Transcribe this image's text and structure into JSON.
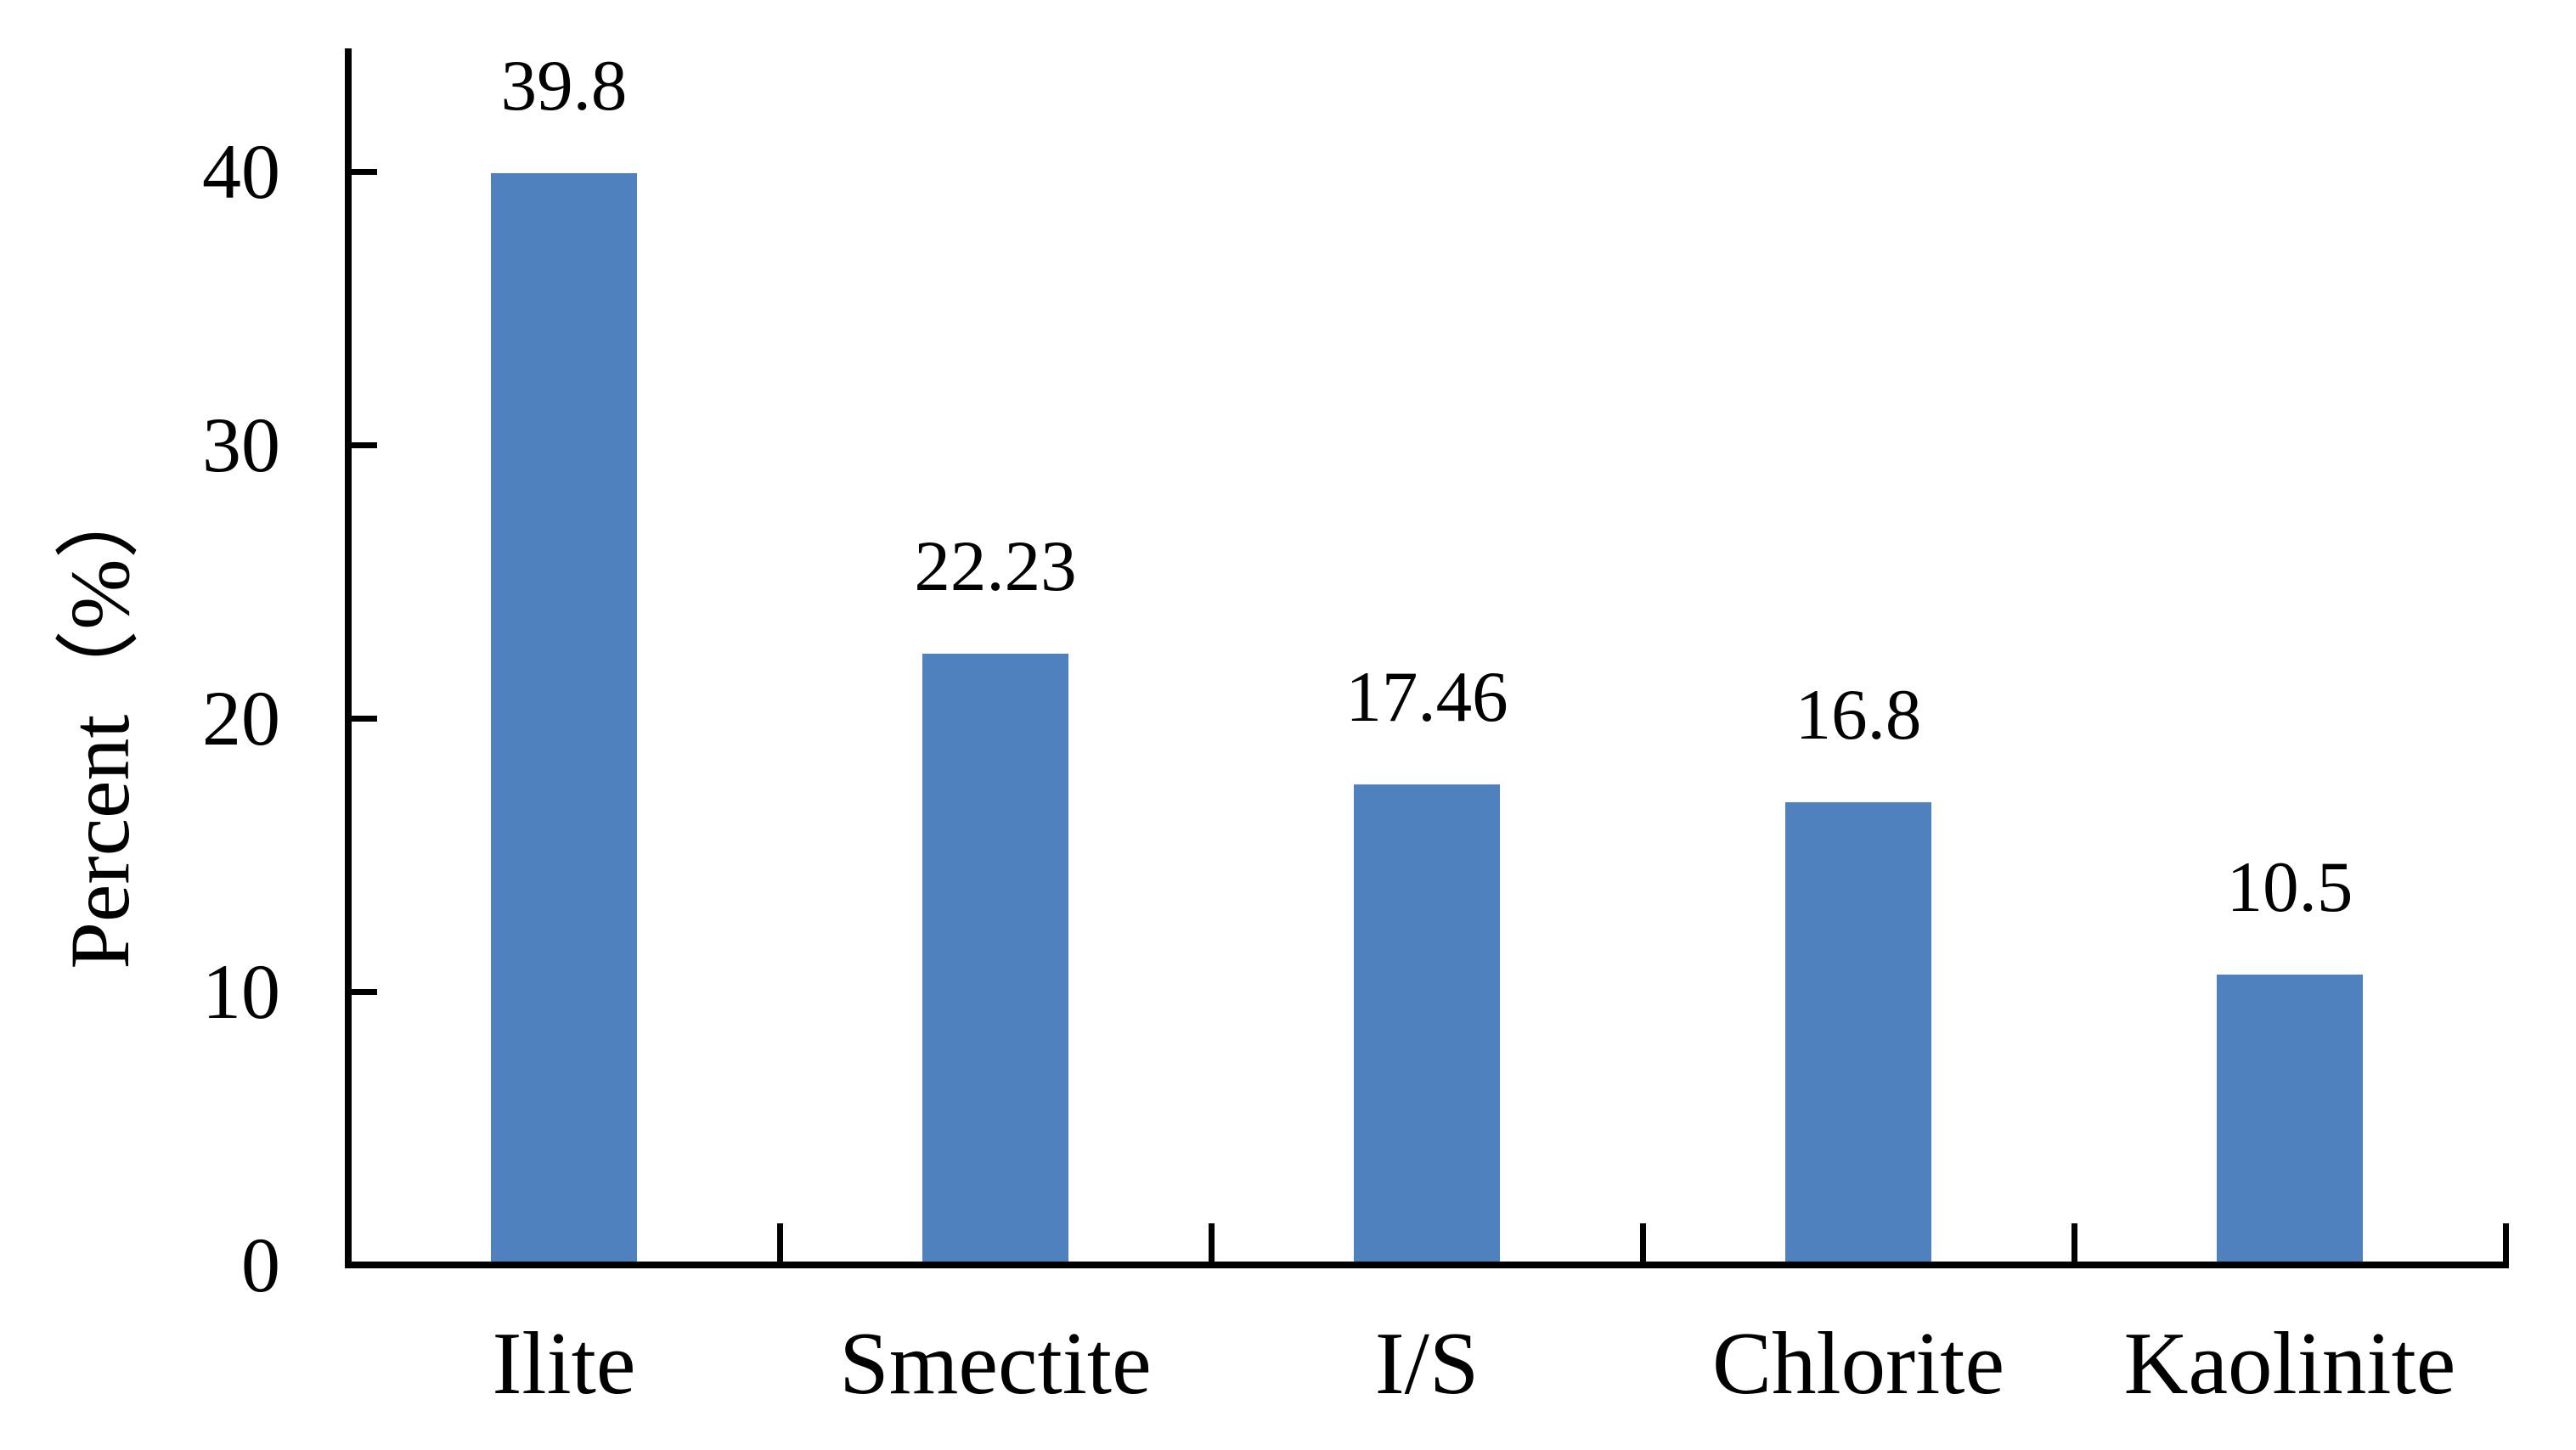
{
  "chart_data": {
    "type": "bar",
    "title": "",
    "categories": [
      "Ilite",
      "Smectite",
      "I/S",
      "Chlorite",
      "Kaolinite"
    ],
    "values": [
      39.8,
      22.23,
      17.46,
      16.8,
      10.5
    ],
    "value_labels": [
      "39.8",
      "22.23",
      "17.46",
      "16.8",
      "10.5"
    ],
    "series": [
      {
        "name": "Percent",
        "values": [
          39.8,
          22.23,
          17.46,
          16.8,
          10.5
        ]
      }
    ],
    "xlabel": "",
    "ylabel": "Percent（%）",
    "yticks": [
      0,
      10,
      20,
      30,
      40
    ],
    "ytick_labels": [
      "0",
      "10",
      "20",
      "30",
      "40"
    ],
    "ylim": [
      0,
      44.5
    ],
    "grid": "off",
    "legend": "none",
    "bar_color": "#4E81BD",
    "axis_color": "#000000",
    "text_color": "#000000",
    "background_color": "#ffffff"
  }
}
